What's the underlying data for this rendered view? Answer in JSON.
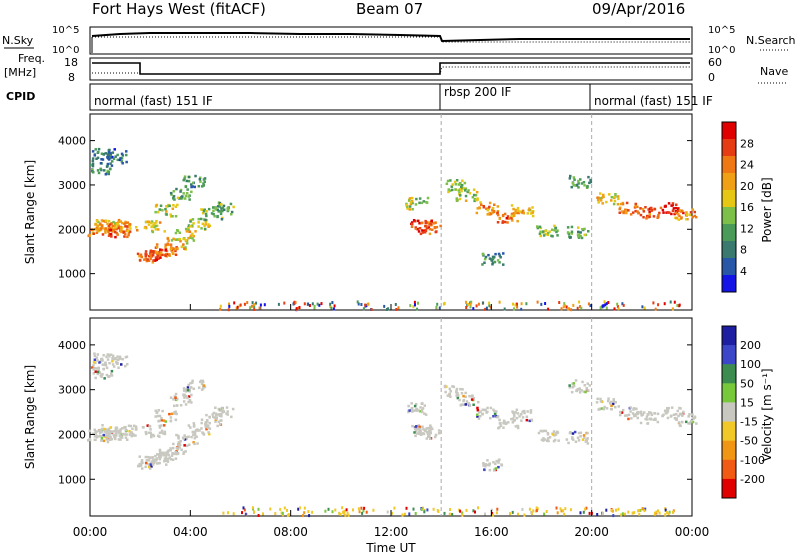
{
  "header": {
    "site": "Fort Hays West (fitACF)",
    "beam": "Beam 07",
    "date": "09/Apr/2016"
  },
  "summary": {
    "nsky_label": "N.Sky",
    "nsearch_label": "N.Search",
    "noise_ticks": [
      "10^5",
      "10^0"
    ],
    "freq_label": "Freq.",
    "freq_unit": "[MHz]",
    "freq_ticks": [
      18,
      8
    ],
    "nave_label": "Nave",
    "nave_ticks": [
      60,
      0
    ],
    "cpid_label": "CPID",
    "cpid_segments": [
      {
        "label": "normal (fast) 151 IF",
        "start": 0,
        "end": 14
      },
      {
        "label": "rbsp 200 IF",
        "start": 14,
        "end": 20
      },
      {
        "label": "normal (fast) 151 IF",
        "start": 20,
        "end": 24
      }
    ]
  },
  "panels": {
    "power": {
      "ylabel": "Slant Range [km]",
      "colorbar_label": "Power [dB]",
      "colorbar_ticks": [
        4,
        8,
        12,
        16,
        20,
        24,
        28
      ],
      "colors": [
        "#1414e6",
        "#2857a8",
        "#3a7a6e",
        "#4a9a58",
        "#7cc04a",
        "#e6c814",
        "#f0a014",
        "#f07814",
        "#e63c14",
        "#e00000"
      ]
    },
    "velocity": {
      "ylabel": "Slant Range [km]",
      "colorbar_label": "Velocity [m s⁻¹]",
      "colorbar_ticks": [
        200,
        100,
        50,
        15,
        -15,
        -50,
        -100,
        -200
      ],
      "colors": [
        "#1e1ea0",
        "#3c46c8",
        "#3c8c50",
        "#78c83c",
        "#c8c8c0",
        "#f0c828",
        "#f09614",
        "#f05a14",
        "#e00000"
      ]
    }
  },
  "xaxis": {
    "label": "Time UT",
    "ticks": [
      "00:00",
      "04:00",
      "08:00",
      "12:00",
      "16:00",
      "20:00",
      "00:00"
    ]
  },
  "chart_data": {
    "type": "heatmap",
    "title": "Fort Hays West (fitACF)",
    "xlabel": "Time UT",
    "ylabel": "Slant Range [km]",
    "xlim": [
      0,
      24
    ],
    "ylim": [
      180,
      4600
    ],
    "yticks": [
      1000,
      2000,
      3000,
      4000
    ],
    "cpid_boundaries": [
      14,
      20
    ],
    "echo_regions": [
      {
        "t": 0.3,
        "r": 2000,
        "pw": 20
      },
      {
        "t": 0.6,
        "r": 2100,
        "pw": 18
      },
      {
        "t": 0.8,
        "r": 2020,
        "pw": 22
      },
      {
        "t": 1.1,
        "r": 1980,
        "pw": 24
      },
      {
        "t": 1.4,
        "r": 2100,
        "pw": 20
      },
      {
        "t": 0.5,
        "r": 3700,
        "pw": 6
      },
      {
        "t": 1.0,
        "r": 3650,
        "pw": 6
      },
      {
        "t": 0.4,
        "r": 3400,
        "pw": 8
      },
      {
        "t": 2.3,
        "r": 1400,
        "pw": 22
      },
      {
        "t": 2.6,
        "r": 1450,
        "pw": 26
      },
      {
        "t": 3.0,
        "r": 1550,
        "pw": 22
      },
      {
        "t": 3.4,
        "r": 1700,
        "pw": 18
      },
      {
        "t": 3.8,
        "r": 1900,
        "pw": 16
      },
      {
        "t": 4.3,
        "r": 2150,
        "pw": 14
      },
      {
        "t": 4.8,
        "r": 2350,
        "pw": 12
      },
      {
        "t": 5.3,
        "r": 2500,
        "pw": 10
      },
      {
        "t": 2.5,
        "r": 2100,
        "pw": 16
      },
      {
        "t": 3.0,
        "r": 2450,
        "pw": 14
      },
      {
        "t": 3.6,
        "r": 2800,
        "pw": 10
      },
      {
        "t": 4.1,
        "r": 3100,
        "pw": 8
      },
      {
        "t": 13.2,
        "r": 2100,
        "pw": 26
      },
      {
        "t": 13.5,
        "r": 2050,
        "pw": 22
      },
      {
        "t": 13.0,
        "r": 2600,
        "pw": 14
      },
      {
        "t": 14.5,
        "r": 3000,
        "pw": 12
      },
      {
        "t": 15.0,
        "r": 2800,
        "pw": 14
      },
      {
        "t": 15.8,
        "r": 2500,
        "pw": 20
      },
      {
        "t": 16.6,
        "r": 2300,
        "pw": 22
      },
      {
        "t": 17.2,
        "r": 2450,
        "pw": 18
      },
      {
        "t": 18.2,
        "r": 2000,
        "pw": 12
      },
      {
        "t": 19.4,
        "r": 1950,
        "pw": 10
      },
      {
        "t": 20.6,
        "r": 2700,
        "pw": 16
      },
      {
        "t": 21.5,
        "r": 2500,
        "pw": 22
      },
      {
        "t": 22.3,
        "r": 2400,
        "pw": 24
      },
      {
        "t": 23.2,
        "r": 2500,
        "pw": 26
      },
      {
        "t": 23.7,
        "r": 2350,
        "pw": 20
      },
      {
        "t": 16.0,
        "r": 1350,
        "pw": 8
      },
      {
        "t": 19.5,
        "r": 3100,
        "pw": 10
      }
    ]
  }
}
